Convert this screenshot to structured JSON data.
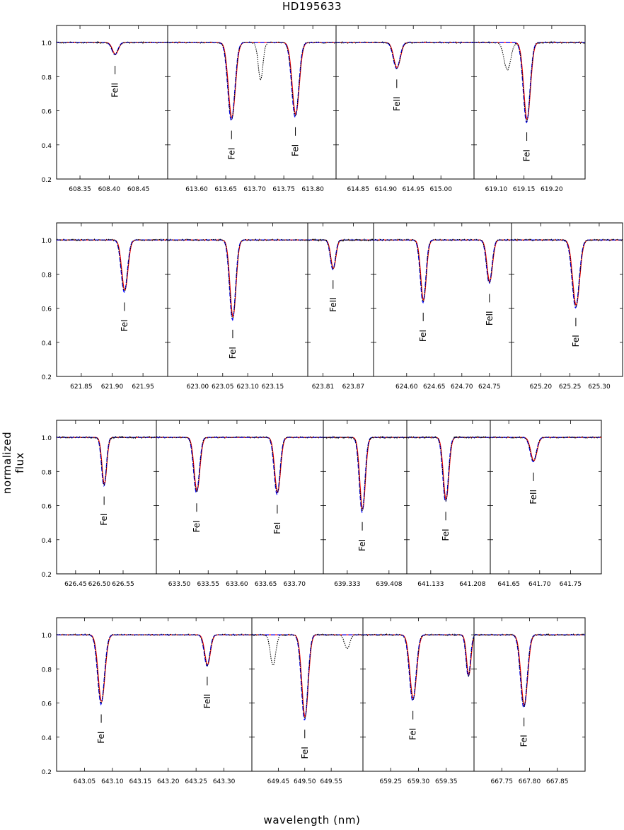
{
  "title": "HD195633",
  "xlabel": "wavelength (nm)",
  "ylabel": "normalized flux",
  "yticks": [
    "1.0",
    "0.8",
    "0.6",
    "0.4",
    "0.2"
  ],
  "series_colors": {
    "observed": "#000000",
    "model_red": "#ff0000",
    "model_blue": "#0000ff"
  },
  "chart_data": {
    "type": "line",
    "ylim": [
      0.2,
      1.1
    ],
    "rows": [
      {
        "panels": [
          {
            "xlim": [
              608.31,
              608.5
            ],
            "xticks": [
              "608.35",
              "608.40",
              "608.45"
            ],
            "lines": [
              {
                "center": 608.41,
                "depth": 0.07,
                "width": 0.005,
                "label": "FeII"
              }
            ],
            "blends": []
          },
          {
            "xlim": [
              613.55,
              613.84
            ],
            "xticks": [
              "613.60",
              "613.65",
              "613.70",
              "613.75",
              "613.80"
            ],
            "lines": [
              {
                "center": 613.66,
                "depth": 0.45,
                "width": 0.006,
                "label": "FeI"
              },
              {
                "center": 613.77,
                "depth": 0.43,
                "width": 0.006,
                "label": "FeI"
              }
            ],
            "blends": [
              {
                "center": 613.71,
                "depth": 0.22,
                "width": 0.004
              }
            ]
          },
          {
            "xlim": [
              614.81,
              615.06
            ],
            "xticks": [
              "614.85",
              "614.90",
              "614.95",
              "615.00"
            ],
            "lines": [
              {
                "center": 614.92,
                "depth": 0.15,
                "width": 0.006,
                "label": "FeII"
              }
            ],
            "blends": []
          },
          {
            "xlim": [
              619.06,
              619.26
            ],
            "xticks": [
              "619.10",
              "619.15",
              "619.20"
            ],
            "lines": [
              {
                "center": 619.155,
                "depth": 0.46,
                "width": 0.006,
                "label": "FeI"
              }
            ],
            "blends": [
              {
                "center": 619.12,
                "depth": 0.16,
                "width": 0.006
              }
            ]
          }
        ]
      },
      {
        "panels": [
          {
            "xlim": [
              621.81,
              621.99
            ],
            "xticks": [
              "621.85",
              "621.90",
              "621.95"
            ],
            "lines": [
              {
                "center": 621.92,
                "depth": 0.3,
                "width": 0.005,
                "label": "FeI"
              }
            ],
            "blends": []
          },
          {
            "xlim": [
              622.94,
              623.22
            ],
            "xticks": [
              "623.00",
              "623.05",
              "623.10",
              "623.15"
            ],
            "lines": [
              {
                "center": 623.07,
                "depth": 0.46,
                "width": 0.006,
                "label": "FeI"
              }
            ],
            "blends": []
          },
          {
            "xlim": [
              623.78,
              623.91
            ],
            "xticks": [
              "623.81",
              "623.87"
            ],
            "lines": [
              {
                "center": 623.83,
                "depth": 0.17,
                "width": 0.005,
                "label": "FeII"
              }
            ],
            "blends": []
          },
          {
            "xlim": [
              624.54,
              624.79
            ],
            "xticks": [
              "624.60",
              "624.65",
              "624.70",
              "624.75"
            ],
            "lines": [
              {
                "center": 624.63,
                "depth": 0.36,
                "width": 0.005,
                "label": "FeI"
              },
              {
                "center": 624.75,
                "depth": 0.25,
                "width": 0.005,
                "label": "FeII"
              }
            ],
            "blends": []
          },
          {
            "xlim": [
              625.15,
              625.34
            ],
            "xticks": [
              "625.20",
              "625.25",
              "625.30"
            ],
            "lines": [
              {
                "center": 625.26,
                "depth": 0.39,
                "width": 0.006,
                "label": "FeI"
              }
            ],
            "blends": []
          }
        ]
      },
      {
        "panels": [
          {
            "xlim": [
              626.41,
              626.62
            ],
            "xticks": [
              "626.45",
              "626.50",
              "626.55"
            ],
            "lines": [
              {
                "center": 626.51,
                "depth": 0.28,
                "width": 0.005,
                "label": "FeI"
              }
            ],
            "blends": []
          },
          {
            "xlim": [
              633.46,
              633.75
            ],
            "xticks": [
              "633.50",
              "633.55",
              "633.60",
              "633.65",
              "633.70"
            ],
            "lines": [
              {
                "center": 633.53,
                "depth": 0.32,
                "width": 0.005,
                "label": "FeI"
              },
              {
                "center": 633.67,
                "depth": 0.33,
                "width": 0.005,
                "label": "FeI"
              }
            ],
            "blends": []
          },
          {
            "xlim": [
              639.29,
              639.44
            ],
            "xticks": [
              "639.333",
              "639.408"
            ],
            "lines": [
              {
                "center": 639.36,
                "depth": 0.43,
                "width": 0.005,
                "label": "FeI"
              }
            ],
            "blends": []
          },
          {
            "xlim": [
              641.09,
              641.24
            ],
            "xticks": [
              "641.133",
              "641.208"
            ],
            "lines": [
              {
                "center": 641.16,
                "depth": 0.37,
                "width": 0.005,
                "label": "FeI"
              }
            ],
            "blends": []
          },
          {
            "xlim": [
              641.62,
              641.8
            ],
            "xticks": [
              "641.65",
              "641.70",
              "641.75"
            ],
            "lines": [
              {
                "center": 641.69,
                "depth": 0.14,
                "width": 0.005,
                "label": "FeII"
              }
            ],
            "blends": []
          }
        ]
      },
      {
        "panels": [
          {
            "xlim": [
              643.0,
              643.35
            ],
            "xticks": [
              "643.05",
              "643.10",
              "643.15",
              "643.20",
              "643.25",
              "643.30"
            ],
            "lines": [
              {
                "center": 643.08,
                "depth": 0.4,
                "width": 0.006,
                "label": "FeI"
              },
              {
                "center": 643.27,
                "depth": 0.18,
                "width": 0.005,
                "label": "FeII"
              }
            ],
            "blends": []
          },
          {
            "xlim": [
              649.4,
              649.61
            ],
            "xticks": [
              "649.45",
              "649.50",
              "649.55"
            ],
            "lines": [
              {
                "center": 649.5,
                "depth": 0.49,
                "width": 0.006,
                "label": "FeI"
              }
            ],
            "blends": [
              {
                "center": 649.44,
                "depth": 0.18,
                "width": 0.005
              },
              {
                "center": 649.58,
                "depth": 0.08,
                "width": 0.005
              }
            ]
          },
          {
            "xlim": [
              659.2,
              659.4
            ],
            "xticks": [
              "659.25",
              "659.30",
              "659.35"
            ],
            "lines": [
              {
                "center": 659.29,
                "depth": 0.38,
                "width": 0.006,
                "label": "FeI"
              },
              {
                "center": 659.39,
                "depth": 0.24,
                "width": 0.004,
                "label": ""
              }
            ],
            "blends": []
          },
          {
            "xlim": [
              667.7,
              667.9
            ],
            "xticks": [
              "667.75",
              "667.80",
              "667.85"
            ],
            "lines": [
              {
                "center": 667.79,
                "depth": 0.42,
                "width": 0.006,
                "label": "FeI"
              }
            ],
            "blends": []
          }
        ]
      }
    ]
  }
}
